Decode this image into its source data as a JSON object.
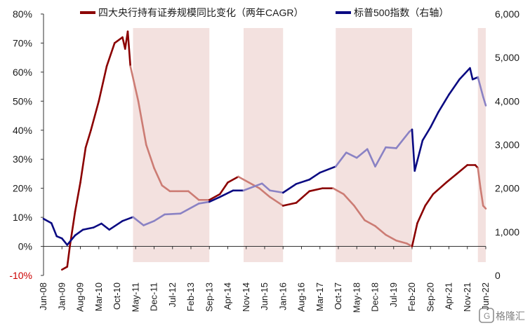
{
  "chart_data": {
    "type": "line",
    "title": "",
    "legend_position": "top",
    "y_left": {
      "ticks": [
        "80%",
        "70%",
        "60%",
        "50%",
        "40%",
        "30%",
        "20%",
        "10%",
        "0%",
        "-10%"
      ],
      "range": [
        -10,
        80
      ],
      "unit": "%"
    },
    "y_right": {
      "ticks": [
        "6,000",
        "5,000",
        "4,000",
        "3,000",
        "2,000",
        "1,000",
        "0"
      ],
      "range": [
        0,
        6000
      ]
    },
    "x_ticks": [
      "Jun-08",
      "Jan-09",
      "Aug-09",
      "Mar-10",
      "Oct-10",
      "May-11",
      "Dec-11",
      "Jul-12",
      "Feb-13",
      "Sep-13",
      "Apr-14",
      "Nov-14",
      "Jun-15",
      "Jan-16",
      "Aug-16",
      "Mar-17",
      "Oct-17",
      "May-18",
      "Dec-18",
      "Jul-19",
      "Feb-20",
      "Sep-20",
      "Apr-21",
      "Nov-21",
      "Jun-22"
    ],
    "shaded_periods": [
      {
        "start": "2011-04",
        "end": "2013-09"
      },
      {
        "start": "2014-10",
        "end": "2016-01"
      },
      {
        "start": "2017-09",
        "end": "2020-02"
      },
      {
        "start": "2022-03",
        "end": "2022-06"
      }
    ],
    "series": [
      {
        "name": "四大央行持有证券规模同比变化（两年CAGR）",
        "axis": "left",
        "color": "#8b0000",
        "shaded_color": "#cc7c74",
        "points": [
          [
            "2009-01",
            -8
          ],
          [
            "2009-03",
            -7
          ],
          [
            "2009-04",
            0
          ],
          [
            "2009-06",
            12
          ],
          [
            "2009-08",
            22
          ],
          [
            "2009-10",
            34
          ],
          [
            "2009-12",
            40
          ],
          [
            "2010-03",
            50
          ],
          [
            "2010-06",
            62
          ],
          [
            "2010-09",
            70
          ],
          [
            "2010-12",
            72
          ],
          [
            "2011-01",
            68
          ],
          [
            "2011-02",
            74
          ],
          [
            "2011-03",
            62
          ],
          [
            "2011-06",
            50
          ],
          [
            "2011-09",
            35
          ],
          [
            "2011-12",
            27
          ],
          [
            "2012-03",
            21
          ],
          [
            "2012-06",
            19
          ],
          [
            "2012-09",
            19
          ],
          [
            "2013-01",
            19
          ],
          [
            "2013-05",
            16
          ],
          [
            "2013-09",
            16
          ],
          [
            "2014-01",
            18
          ],
          [
            "2014-04",
            22
          ],
          [
            "2014-08",
            24
          ],
          [
            "2014-12",
            22
          ],
          [
            "2015-04",
            20
          ],
          [
            "2015-08",
            17
          ],
          [
            "2016-01",
            14
          ],
          [
            "2016-06",
            15
          ],
          [
            "2016-11",
            19
          ],
          [
            "2017-04",
            20
          ],
          [
            "2017-08",
            20
          ],
          [
            "2017-12",
            18
          ],
          [
            "2018-04",
            14
          ],
          [
            "2018-08",
            9
          ],
          [
            "2018-12",
            7
          ],
          [
            "2019-04",
            4
          ],
          [
            "2019-08",
            2
          ],
          [
            "2019-12",
            1
          ],
          [
            "2020-02",
            0
          ],
          [
            "2020-04",
            8
          ],
          [
            "2020-07",
            14
          ],
          [
            "2020-10",
            18
          ],
          [
            "2021-03",
            22
          ],
          [
            "2021-07",
            25
          ],
          [
            "2021-11",
            28
          ],
          [
            "2022-02",
            28
          ],
          [
            "2022-03",
            27
          ],
          [
            "2022-04",
            20
          ],
          [
            "2022-05",
            14
          ],
          [
            "2022-06",
            13
          ]
        ]
      },
      {
        "name": "标普500指数（右轴）",
        "axis": "right",
        "color": "#0a0a82",
        "shaded_color": "#8a82c4",
        "points": [
          [
            "2008-06",
            1300
          ],
          [
            "2008-09",
            1200
          ],
          [
            "2008-11",
            900
          ],
          [
            "2009-01",
            850
          ],
          [
            "2009-03",
            700
          ],
          [
            "2009-06",
            920
          ],
          [
            "2009-09",
            1050
          ],
          [
            "2010-01",
            1100
          ],
          [
            "2010-04",
            1190
          ],
          [
            "2010-07",
            1050
          ],
          [
            "2010-12",
            1250
          ],
          [
            "2011-04",
            1340
          ],
          [
            "2011-08",
            1150
          ],
          [
            "2011-12",
            1250
          ],
          [
            "2012-04",
            1400
          ],
          [
            "2012-10",
            1420
          ],
          [
            "2013-05",
            1650
          ],
          [
            "2013-09",
            1690
          ],
          [
            "2014-01",
            1800
          ],
          [
            "2014-06",
            1950
          ],
          [
            "2014-10",
            1950
          ],
          [
            "2015-05",
            2110
          ],
          [
            "2015-08",
            1950
          ],
          [
            "2016-01",
            1900
          ],
          [
            "2016-06",
            2100
          ],
          [
            "2016-11",
            2200
          ],
          [
            "2017-03",
            2360
          ],
          [
            "2017-09",
            2500
          ],
          [
            "2018-01",
            2820
          ],
          [
            "2018-05",
            2700
          ],
          [
            "2018-09",
            2900
          ],
          [
            "2018-12",
            2500
          ],
          [
            "2019-04",
            2940
          ],
          [
            "2019-08",
            2920
          ],
          [
            "2020-01",
            3300
          ],
          [
            "2020-02",
            3350
          ],
          [
            "2020-03",
            2400
          ],
          [
            "2020-06",
            3100
          ],
          [
            "2020-09",
            3400
          ],
          [
            "2020-12",
            3750
          ],
          [
            "2021-04",
            4150
          ],
          [
            "2021-08",
            4500
          ],
          [
            "2021-12",
            4760
          ],
          [
            "2022-01",
            4500
          ],
          [
            "2022-03",
            4550
          ],
          [
            "2022-05",
            4100
          ],
          [
            "2022-06",
            3900
          ]
        ]
      }
    ]
  },
  "watermark": {
    "text": "格隆汇",
    "icon": "glh-logo-icon"
  }
}
